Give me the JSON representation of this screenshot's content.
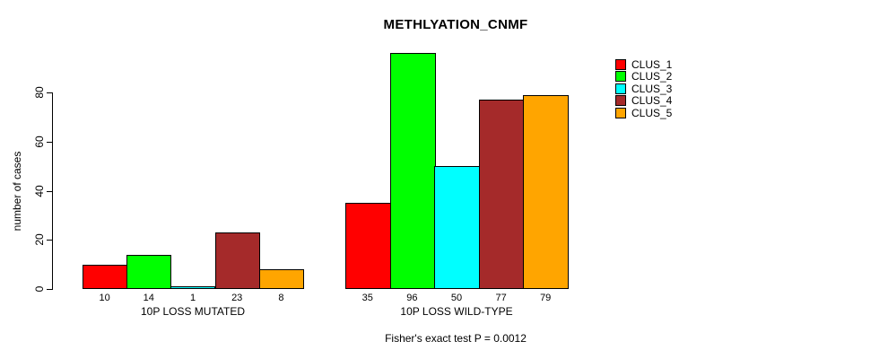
{
  "title": "METHLYATION_CNMF",
  "footnote": "Fisher's exact test P = 0.0012",
  "chart_data": {
    "type": "bar",
    "title": "METHLYATION_CNMF",
    "ylabel": "number of cases",
    "xlabel": "",
    "yticks": [
      0,
      20,
      40,
      60,
      80
    ],
    "axis_range": [
      0,
      80
    ],
    "ylim": [
      0,
      96
    ],
    "grid": false,
    "legend_position": "right",
    "categories": [
      "10P LOSS MUTATED",
      "10P LOSS WILD-TYPE"
    ],
    "series": [
      {
        "name": "CLUS_1",
        "color": "#FF0000",
        "values": [
          10,
          35
        ]
      },
      {
        "name": "CLUS_2",
        "color": "#00FF00",
        "values": [
          14,
          96
        ]
      },
      {
        "name": "CLUS_3",
        "color": "#00FFFF",
        "values": [
          1,
          50
        ]
      },
      {
        "name": "CLUS_4",
        "color": "#A52A2A",
        "values": [
          23,
          77
        ]
      },
      {
        "name": "CLUS_5",
        "color": "#FFA500",
        "values": [
          8,
          79
        ]
      }
    ],
    "annotation": "Fisher's exact test P = 0.0012"
  }
}
